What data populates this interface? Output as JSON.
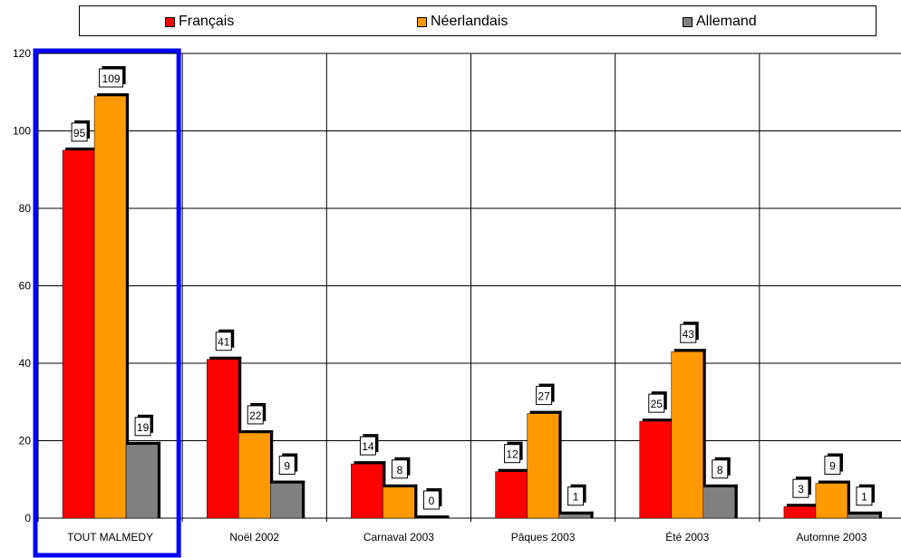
{
  "chart_data": {
    "type": "bar",
    "categories": [
      "TOUT MALMEDY",
      "Noël 2002",
      "Carnaval 2003",
      "Pâques 2003",
      "Été 2003",
      "Automne 2003"
    ],
    "series": [
      {
        "name": "Français",
        "color": "#ff0000",
        "values": [
          95,
          41,
          14,
          12,
          25,
          3
        ]
      },
      {
        "name": "Néerlandais",
        "color": "#ff9900",
        "values": [
          109,
          22,
          8,
          27,
          43,
          9
        ]
      },
      {
        "name": "Allemand",
        "color": "#808080",
        "values": [
          19,
          9,
          0,
          1,
          8,
          1
        ]
      }
    ],
    "ylim": [
      0,
      120
    ],
    "yticks": [
      0,
      20,
      40,
      60,
      80,
      100,
      120
    ],
    "grid": true,
    "legend_position": "top",
    "highlight": {
      "category": "TOUT MALMEDY",
      "color": "#0000ff"
    }
  }
}
